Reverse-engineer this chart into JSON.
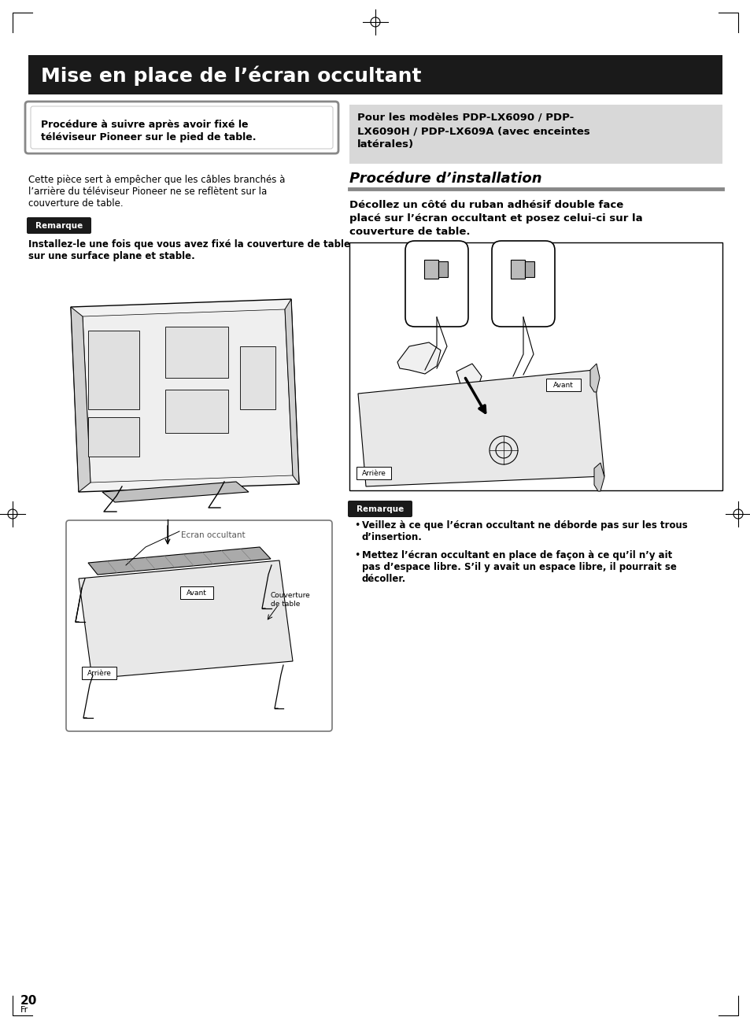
{
  "bg_color": "#ffffff",
  "page_number": "20",
  "page_sub": "Fr",
  "title_bg": "#1a1a1a",
  "title_text": "Mise en place de l’écran occultant",
  "title_color": "#ffffff",
  "left_box_text_line1": "Procédure à suivre après avoir fixé le",
  "left_box_text_line2": "téléviseur Pioneer sur le pied de table.",
  "right_box_bg": "#d8d8d8",
  "right_box_text_line1": "Pour les modèles PDP-LX6090 / PDP-",
  "right_box_text_line2": "LX6090H / PDP-LX609A (avec enceintes",
  "right_box_text_line3": "latérales)",
  "left_para_line1": "Cette pièce sert à empêcher que les câbles branchés à",
  "left_para_line2": "l’arrière du téléviseur Pioneer ne se reflètent sur la",
  "left_para_line3": "couverture de table.",
  "remarque1_label": "Remarque",
  "remarque1_text_line1": "Installez-le une fois que vous avez fixé la couverture de table",
  "remarque1_text_line2": "sur une surface plane et stable.",
  "section_title": "Procédure d’installation",
  "instruction_line1": "Décollez un côté du ruban adhésif double face",
  "instruction_line2": "placé sur l’écran occultant et posez celui-ci sur la",
  "instruction_line3": "couverture de table.",
  "remarque2_label": "Remarque",
  "bullet1_line1": "Veillez à ce que l’écran occultant ne déborde pas sur les trous",
  "bullet1_line2": "d’insertion.",
  "bullet2_line1": "Mettez l’écran occultant en place de façon à ce qu’il n’y ait",
  "bullet2_line2": "pas d’espace libre. S’il y avait un espace libre, il pourrait se",
  "bullet2_line3": "décoller.",
  "label_avant1": "Avant",
  "label_arriere1": "Arrière",
  "label_avant2": "Avant",
  "label_arriere2": "Arrière",
  "label_couverture_line1": "Couverture",
  "label_couverture_line2": "de table",
  "label_ecran": "Ecran occultant"
}
